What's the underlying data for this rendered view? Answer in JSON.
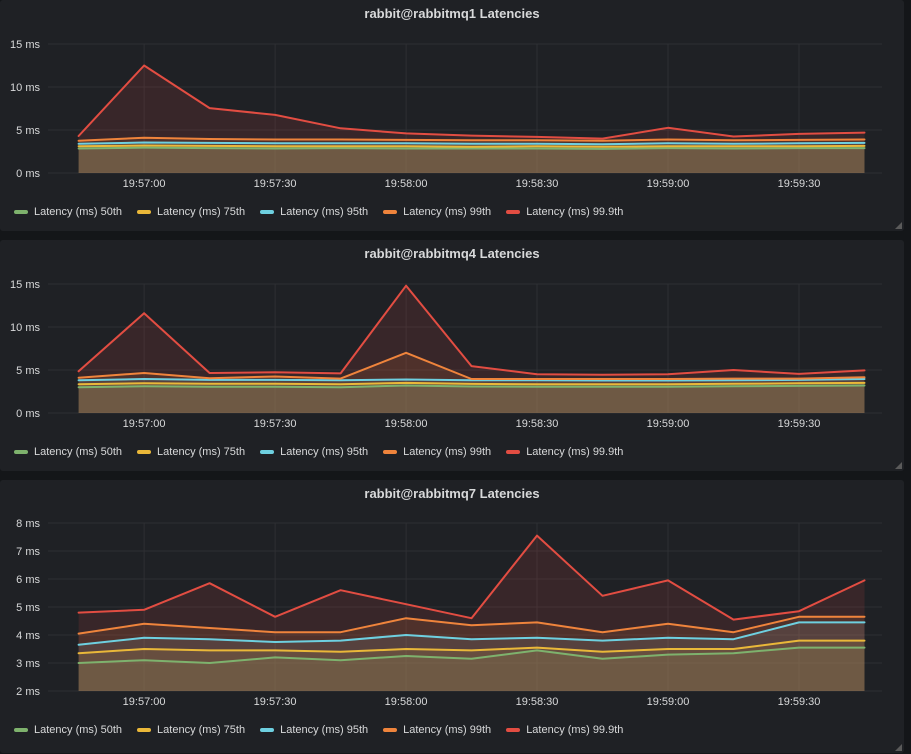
{
  "page": {
    "background": "#141619",
    "panel_background": "#1f2125",
    "grid_color": "#2e2f33",
    "text_color": "#d8d9da"
  },
  "chart_data": [
    {
      "type": "area",
      "title": "rabbit@rabbitmq1 Latencies",
      "grid": true,
      "legend_position": "bottom-left",
      "ylim": [
        0,
        15
      ],
      "y_ticks": [
        {
          "v": 0,
          "label": "0 ms"
        },
        {
          "v": 5,
          "label": "5 ms"
        },
        {
          "v": 10,
          "label": "10 ms"
        },
        {
          "v": 15,
          "label": "15 ms"
        }
      ],
      "x_seconds": [
        0,
        15,
        30,
        45,
        60,
        75,
        90,
        105,
        120,
        135,
        150,
        165,
        180
      ],
      "x_ticks": [
        {
          "t": 15,
          "label": "19:57:00"
        },
        {
          "t": 45,
          "label": "19:57:30"
        },
        {
          "t": 75,
          "label": "19:58:00"
        },
        {
          "t": 105,
          "label": "19:58:30"
        },
        {
          "t": 135,
          "label": "19:59:00"
        },
        {
          "t": 165,
          "label": "19:59:30"
        }
      ],
      "series": [
        {
          "name": "Latency (ms) 50th",
          "color": "#7EB26D",
          "values": [
            2.85,
            2.95,
            2.9,
            2.85,
            2.9,
            2.85,
            2.85,
            2.85,
            2.8,
            2.9,
            2.85,
            2.9,
            2.9
          ]
        },
        {
          "name": "Latency (ms) 75th",
          "color": "#EAB839",
          "values": [
            3.1,
            3.2,
            3.15,
            3.1,
            3.1,
            3.1,
            3.05,
            3.1,
            3.05,
            3.1,
            3.1,
            3.1,
            3.15
          ]
        },
        {
          "name": "Latency (ms) 95th",
          "color": "#6ED0E0",
          "values": [
            3.4,
            3.55,
            3.5,
            3.45,
            3.45,
            3.45,
            3.4,
            3.4,
            3.35,
            3.45,
            3.4,
            3.45,
            3.5
          ]
        },
        {
          "name": "Latency (ms) 99th",
          "color": "#EF843C",
          "values": [
            3.75,
            4.1,
            3.95,
            3.9,
            3.9,
            3.85,
            3.8,
            3.8,
            3.75,
            3.9,
            3.8,
            3.85,
            3.9
          ]
        },
        {
          "name": "Latency (ms) 99.9th",
          "color": "#E24D42",
          "values": [
            4.3,
            12.5,
            7.55,
            6.75,
            5.2,
            4.6,
            4.35,
            4.2,
            4.0,
            5.25,
            4.25,
            4.55,
            4.7
          ]
        }
      ]
    },
    {
      "type": "area",
      "title": "rabbit@rabbitmq4 Latencies",
      "grid": true,
      "legend_position": "bottom-left",
      "ylim": [
        0,
        15
      ],
      "y_ticks": [
        {
          "v": 0,
          "label": "0 ms"
        },
        {
          "v": 5,
          "label": "5 ms"
        },
        {
          "v": 10,
          "label": "10 ms"
        },
        {
          "v": 15,
          "label": "15 ms"
        }
      ],
      "x_seconds": [
        0,
        15,
        30,
        45,
        60,
        75,
        90,
        105,
        120,
        135,
        150,
        165,
        180
      ],
      "x_ticks": [
        {
          "t": 15,
          "label": "19:57:00"
        },
        {
          "t": 45,
          "label": "19:57:30"
        },
        {
          "t": 75,
          "label": "19:58:00"
        },
        {
          "t": 105,
          "label": "19:58:30"
        },
        {
          "t": 135,
          "label": "19:59:00"
        },
        {
          "t": 165,
          "label": "19:59:30"
        }
      ],
      "series": [
        {
          "name": "Latency (ms) 50th",
          "color": "#7EB26D",
          "values": [
            3.0,
            3.1,
            3.05,
            3.05,
            3.0,
            3.2,
            3.08,
            3.05,
            3.05,
            3.05,
            3.1,
            3.15,
            3.2
          ]
        },
        {
          "name": "Latency (ms) 75th",
          "color": "#EAB839",
          "values": [
            3.35,
            3.45,
            3.4,
            3.4,
            3.35,
            3.5,
            3.38,
            3.35,
            3.35,
            3.35,
            3.4,
            3.45,
            3.5
          ]
        },
        {
          "name": "Latency (ms) 95th",
          "color": "#6ED0E0",
          "values": [
            3.8,
            3.95,
            3.85,
            3.85,
            3.8,
            3.9,
            3.8,
            3.8,
            3.78,
            3.78,
            3.8,
            3.85,
            3.95
          ]
        },
        {
          "name": "Latency (ms) 99th",
          "color": "#EF843C",
          "values": [
            4.1,
            4.65,
            4.05,
            4.25,
            4.0,
            7.0,
            3.95,
            3.95,
            3.95,
            3.95,
            4.0,
            4.0,
            4.15
          ]
        },
        {
          "name": "Latency (ms) 99.9th",
          "color": "#E24D42",
          "values": [
            4.85,
            11.6,
            4.65,
            4.75,
            4.6,
            14.8,
            5.45,
            4.5,
            4.45,
            4.5,
            5.0,
            4.55,
            4.95
          ]
        }
      ]
    },
    {
      "type": "area",
      "title": "rabbit@rabbitmq7 Latencies",
      "grid": true,
      "legend_position": "bottom-left",
      "ylim": [
        2,
        8
      ],
      "y_ticks": [
        {
          "v": 2,
          "label": "2 ms"
        },
        {
          "v": 3,
          "label": "3 ms"
        },
        {
          "v": 4,
          "label": "4 ms"
        },
        {
          "v": 5,
          "label": "5 ms"
        },
        {
          "v": 6,
          "label": "6 ms"
        },
        {
          "v": 7,
          "label": "7 ms"
        },
        {
          "v": 8,
          "label": "8 ms"
        }
      ],
      "x_seconds": [
        0,
        15,
        30,
        45,
        60,
        75,
        90,
        105,
        120,
        135,
        150,
        165,
        180
      ],
      "x_ticks": [
        {
          "t": 15,
          "label": "19:57:00"
        },
        {
          "t": 45,
          "label": "19:57:30"
        },
        {
          "t": 75,
          "label": "19:58:00"
        },
        {
          "t": 105,
          "label": "19:58:30"
        },
        {
          "t": 135,
          "label": "19:59:00"
        },
        {
          "t": 165,
          "label": "19:59:30"
        }
      ],
      "series": [
        {
          "name": "Latency (ms) 50th",
          "color": "#7EB26D",
          "values": [
            3.0,
            3.1,
            3.0,
            3.2,
            3.1,
            3.25,
            3.15,
            3.45,
            3.15,
            3.3,
            3.35,
            3.55,
            3.55
          ]
        },
        {
          "name": "Latency (ms) 75th",
          "color": "#EAB839",
          "values": [
            3.35,
            3.5,
            3.45,
            3.45,
            3.4,
            3.5,
            3.45,
            3.55,
            3.4,
            3.5,
            3.5,
            3.8,
            3.8
          ]
        },
        {
          "name": "Latency (ms) 95th",
          "color": "#6ED0E0",
          "values": [
            3.65,
            3.9,
            3.85,
            3.75,
            3.8,
            4.0,
            3.85,
            3.9,
            3.8,
            3.9,
            3.85,
            4.45,
            4.45
          ]
        },
        {
          "name": "Latency (ms) 99th",
          "color": "#EF843C",
          "values": [
            4.05,
            4.4,
            4.25,
            4.1,
            4.1,
            4.6,
            4.35,
            4.45,
            4.1,
            4.4,
            4.1,
            4.65,
            4.65
          ]
        },
        {
          "name": "Latency (ms) 99.9th",
          "color": "#E24D42",
          "values": [
            4.8,
            4.9,
            5.85,
            4.65,
            5.6,
            5.1,
            4.6,
            7.55,
            5.4,
            5.95,
            4.55,
            4.85,
            5.95
          ]
        }
      ]
    }
  ]
}
